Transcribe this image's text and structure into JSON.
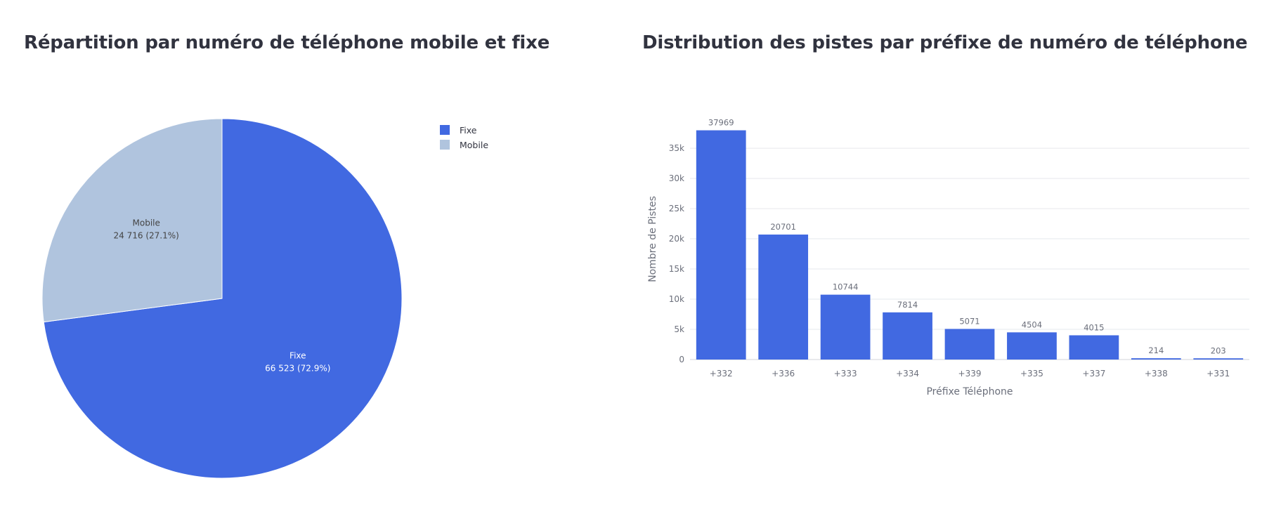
{
  "charts": [
    {
      "title": "Répartition par numéro de téléphone mobile et fixe",
      "chart_data": {
        "type": "pie",
        "slices": [
          {
            "label": "Fixe",
            "value": 66523,
            "value_text": "66 523 (72.9%)",
            "percent": 72.9,
            "color": "#4169e1"
          },
          {
            "label": "Mobile",
            "value": 24716,
            "value_text": "24 716 (27.1%)",
            "percent": 27.1,
            "color": "#b0c4de"
          }
        ],
        "legend": [
          "Fixe",
          "Mobile"
        ],
        "legend_position": "top-right"
      }
    },
    {
      "title": "Distribution des pistes par préfixe de numéro de téléphone",
      "chart_data": {
        "type": "bar",
        "categories": [
          "+332",
          "+336",
          "+333",
          "+334",
          "+339",
          "+335",
          "+337",
          "+338",
          "+331"
        ],
        "values": [
          37969,
          20701,
          10744,
          7814,
          5071,
          4504,
          4015,
          214,
          203
        ],
        "data_labels": [
          "37969",
          "20701",
          "10744",
          "7814",
          "5071",
          "4504",
          "4015",
          "214",
          "203"
        ],
        "xlabel": "Préfixe Téléphone",
        "ylabel": "Nombre de Pistes",
        "ylim": [
          0,
          38500
        ],
        "yticks": [
          0,
          5000,
          10000,
          15000,
          20000,
          25000,
          30000,
          35000
        ],
        "ytick_labels": [
          "0",
          "5k",
          "10k",
          "15k",
          "20k",
          "25k",
          "30k",
          "35k"
        ],
        "bar_color": "#4169e1",
        "grid": true
      }
    }
  ]
}
